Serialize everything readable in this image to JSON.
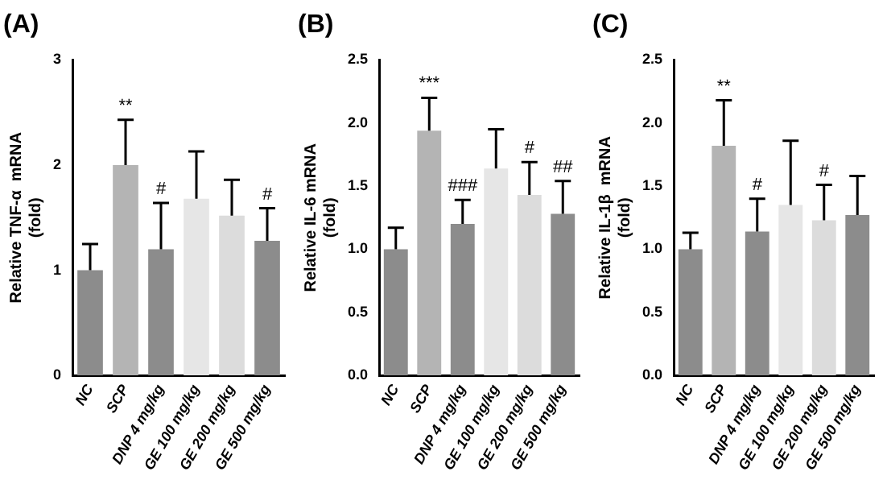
{
  "chart_data": [
    {
      "type": "bar",
      "title": "(A)",
      "ylabel": "Relative TNF-α  mRNA\n(fold)",
      "categories": [
        "NC",
        "SCP",
        "DNP 4 mg/kg",
        "GE 100 mg/kg",
        "GE 200 mg/kg",
        "GE 500 mg/kg"
      ],
      "values": [
        1.0,
        2.0,
        1.2,
        1.68,
        1.52,
        1.28
      ],
      "errors": [
        [
          1.0,
          1.25
        ],
        [
          2.0,
          2.43
        ],
        [
          1.2,
          1.64
        ],
        [
          1.68,
          2.13
        ],
        [
          1.52,
          1.86
        ],
        [
          1.28,
          1.59
        ]
      ],
      "colors": [
        "#8c8c8c",
        "#b4b4b4",
        "#8c8c8c",
        "#e6e6e6",
        "#dcdcdc",
        "#8c8c8c"
      ],
      "ylim": [
        0,
        3
      ],
      "yticks": [
        0,
        1,
        2,
        3
      ],
      "grid": false,
      "legend": false,
      "annotations": [
        {
          "text": "**",
          "x": "SCP",
          "y": 2.43
        },
        {
          "text": "#",
          "x": "DNP 4 mg/kg",
          "y": 1.64
        },
        {
          "text": "#",
          "x": "GE 500 mg/kg",
          "y": 1.59
        }
      ]
    },
    {
      "type": "bar",
      "title": "(B)",
      "ylabel": "Relative IL-6 mRNA\n(fold)",
      "categories": [
        "NC",
        "SCP",
        "DNP 4 mg/kg",
        "GE 100 mg/kg",
        "GE 200 mg/kg",
        "GE 500 mg/kg"
      ],
      "values": [
        1.0,
        1.94,
        1.2,
        1.64,
        1.43,
        1.28
      ],
      "errors": [
        [
          1.0,
          1.17
        ],
        [
          1.94,
          2.2
        ],
        [
          1.2,
          1.39
        ],
        [
          1.64,
          1.95
        ],
        [
          1.43,
          1.69
        ],
        [
          1.28,
          1.54
        ]
      ],
      "colors": [
        "#8c8c8c",
        "#b4b4b4",
        "#8c8c8c",
        "#e6e6e6",
        "#dcdcdc",
        "#8c8c8c"
      ],
      "ylim": [
        0,
        2.5
      ],
      "yticks": [
        {
          "value": 0,
          "label": "0.0"
        },
        0.5,
        {
          "value": 1,
          "label": "1.0"
        },
        1.5,
        {
          "value": 2,
          "label": "2.0"
        },
        2.5
      ],
      "grid": false,
      "legend": false,
      "annotations": [
        {
          "text": "***",
          "x": "SCP",
          "y": 2.2
        },
        {
          "text": "###",
          "x": "DNP 4 mg/kg",
          "y": 1.39
        },
        {
          "text": "#",
          "x": "GE 200 mg/kg",
          "y": 1.69
        },
        {
          "text": "##",
          "x": "GE 500 mg/kg",
          "y": 1.54
        }
      ]
    },
    {
      "type": "bar",
      "title": "(C)",
      "ylabel": "Relative IL-1β  mRNA\n(fold)",
      "categories": [
        "NC",
        "SCP",
        "DNP 4 mg/kg",
        "GE 100 mg/kg",
        "GE 200 mg/kg",
        "GE 500 mg/kg"
      ],
      "values": [
        1.0,
        1.82,
        1.14,
        1.35,
        1.23,
        1.27
      ],
      "errors": [
        [
          1.0,
          1.13
        ],
        [
          1.82,
          2.18
        ],
        [
          1.14,
          1.4
        ],
        [
          1.35,
          1.86
        ],
        [
          1.23,
          1.51
        ],
        [
          1.27,
          1.58
        ]
      ],
      "colors": [
        "#8c8c8c",
        "#b4b4b4",
        "#8c8c8c",
        "#e6e6e6",
        "#dcdcdc",
        "#8c8c8c"
      ],
      "ylim": [
        0,
        2.5
      ],
      "yticks": [
        {
          "value": 0,
          "label": "0.0"
        },
        0.5,
        {
          "value": 1,
          "label": "1.0"
        },
        1.5,
        {
          "value": 2,
          "label": "2.0"
        },
        2.5
      ],
      "grid": false,
      "legend": false,
      "annotations": [
        {
          "text": "**",
          "x": "SCP",
          "y": 2.18
        },
        {
          "text": "#",
          "x": "DNP 4 mg/kg",
          "y": 1.4
        },
        {
          "text": "#",
          "x": "GE 200 mg/kg",
          "y": 1.51
        }
      ]
    }
  ]
}
